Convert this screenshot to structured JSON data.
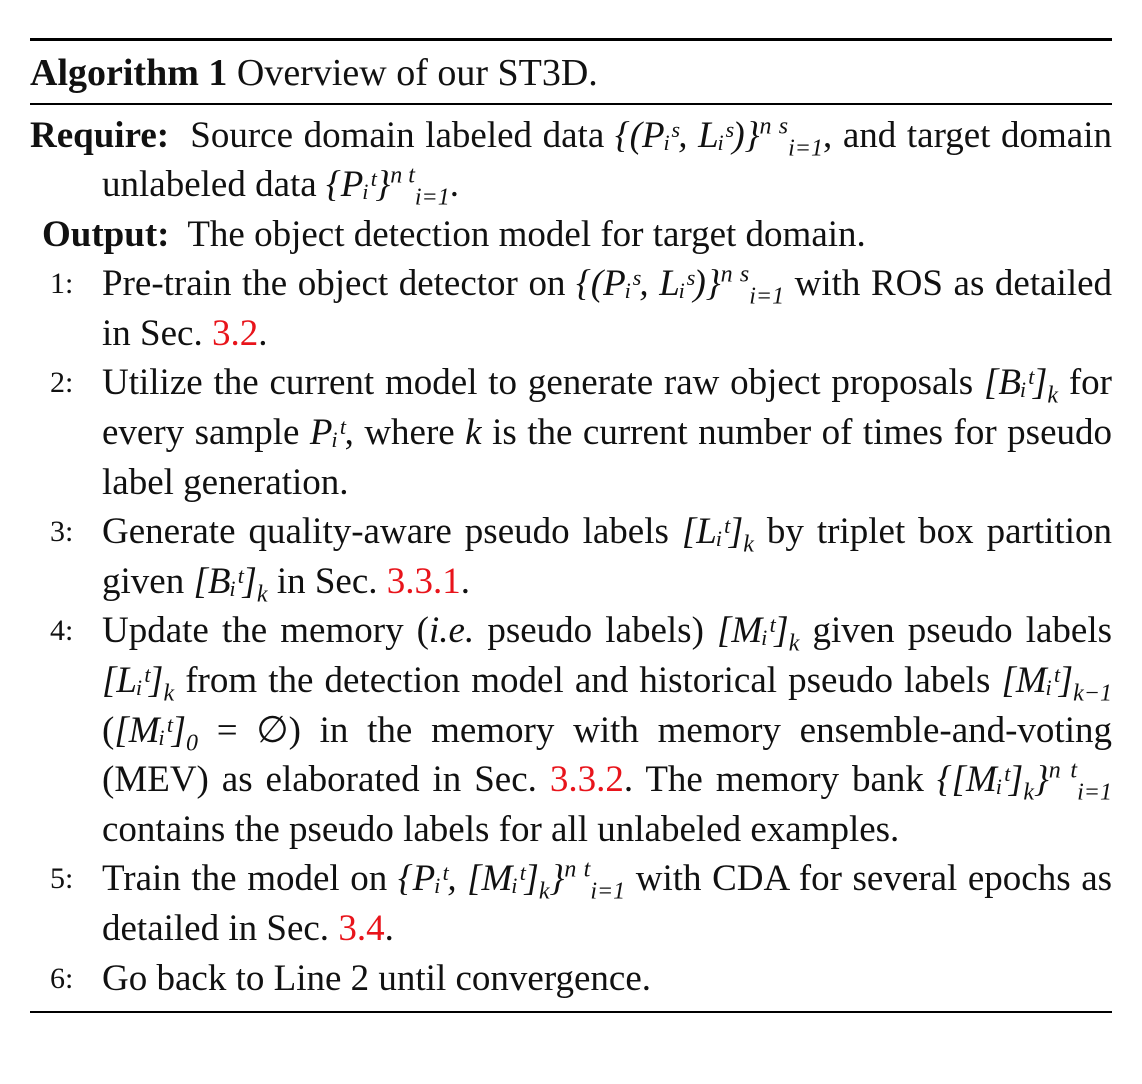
{
  "algorithm": {
    "label": "Algorithm 1",
    "title": "Overview of our ST3D."
  },
  "require": {
    "keyword": "Require:",
    "text_a": "Source domain labeled data",
    "math_a": "{(Pᵢˢ, Lᵢˢ)}",
    "sub_a": "i=1",
    "sup_a": "n s",
    "text_b": ", and target domain unlabeled data",
    "math_b": "{Pᵢᵗ}",
    "sub_b": "i=1",
    "sup_b": "n t",
    "text_c": "."
  },
  "output": {
    "keyword": "Output:",
    "text": "The object detection model for target domain."
  },
  "steps": [
    {
      "num": "1:",
      "a": "Pre-train the object detector on",
      "m1": "{(Pᵢˢ, Lᵢˢ)}",
      "sub1": "i=1",
      "sup1": "n s",
      "b": " with ROS as detailed in Sec. ",
      "ref": "3.2",
      "c": "."
    },
    {
      "num": "2:",
      "a": "Utilize the current model to generate raw object proposals",
      "m1": "[Bᵢᵗ]",
      "sub1": "k",
      "b": " for every sample ",
      "m2": "Pᵢᵗ",
      "c": ", where ",
      "m3": "k",
      "d": " is the current number of times for pseudo label generation."
    },
    {
      "num": "3:",
      "a": "Generate quality-aware pseudo labels",
      "m1": "[Lᵢᵗ]",
      "sub1": "k",
      "b": " by triplet box partition given ",
      "m2": "[Bᵢᵗ]",
      "sub2": "k",
      "c": " in Sec. ",
      "ref": "3.3.1",
      "d": "."
    },
    {
      "num": "4:",
      "a": "Update the memory (",
      "ie": "i.e.",
      "b": " pseudo labels) ",
      "m1": "[Mᵢᵗ]",
      "sub1": "k",
      "c": " given pseudo labels ",
      "m2": "[Lᵢᵗ]",
      "sub2": "k",
      "d": " from the detection model and historical pseudo labels ",
      "m3": "[Mᵢᵗ]",
      "sub3": "k−1",
      "e": " (",
      "m4": "[Mᵢᵗ]",
      "sub4": "0",
      "f": " = ∅) in the memory with memory ensemble-and-voting (MEV) as elaborated in Sec. ",
      "ref": "3.3.2",
      "g": ". The memory bank ",
      "m5": "{[Mᵢᵗ]",
      "sub5": "k",
      "m5b": "}",
      "sub5b": "i=1",
      "sup5b": "n t",
      "h": " contains the pseudo labels for all unlabeled examples."
    },
    {
      "num": "5:",
      "a": "Train the model on",
      "m1": "{Pᵢᵗ, [Mᵢᵗ]",
      "sub1": "k",
      "m1b": "}",
      "sub1b": "i=1",
      "sup1b": "n t",
      "b": " with CDA for several epochs as detailed in Sec. ",
      "ref": "3.4",
      "c": "."
    },
    {
      "num": "6:",
      "a": "Go back to Line 2 until convergence."
    }
  ]
}
